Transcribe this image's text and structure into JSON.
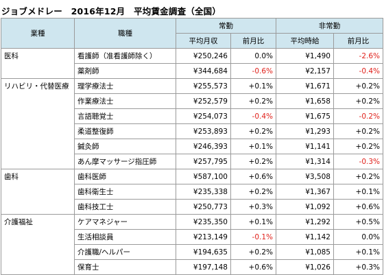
{
  "title": "ジョブメドレー　2016年12月　平均賃金調査（全国）",
  "headers": {
    "category": "業種",
    "job": "職種",
    "fulltime": "常勤",
    "parttime": "非常勤",
    "ft_avg": "平均月収",
    "ft_change": "前月比",
    "pt_avg": "平均時給",
    "pt_change": "前月比"
  },
  "groups": [
    {
      "category": "医科",
      "rows": [
        {
          "job": "看護師（准看護師除く）",
          "ft_avg": "¥250,246",
          "ft_change": "0.0%",
          "pt_avg": "¥1,490",
          "pt_change": "-2.6%"
        },
        {
          "job": "薬剤師",
          "ft_avg": "¥344,684",
          "ft_change": "-0.6%",
          "pt_avg": "¥2,157",
          "pt_change": "-0.4%"
        }
      ]
    },
    {
      "category": "リハビリ・代替医療",
      "rows": [
        {
          "job": "理学療法士",
          "ft_avg": "¥255,573",
          "ft_change": "+0.1%",
          "pt_avg": "¥1,671",
          "pt_change": "+0.2%"
        },
        {
          "job": "作業療法士",
          "ft_avg": "¥252,579",
          "ft_change": "+0.2%",
          "pt_avg": "¥1,658",
          "pt_change": "+0.2%"
        },
        {
          "job": "言語聴覚士",
          "ft_avg": "¥254,073",
          "ft_change": "-0.4%",
          "pt_avg": "¥1,675",
          "pt_change": "-0.2%"
        },
        {
          "job": "柔道整復師",
          "ft_avg": "¥253,893",
          "ft_change": "+0.2%",
          "pt_avg": "¥1,293",
          "pt_change": "+0.2%"
        },
        {
          "job": "鍼灸師",
          "ft_avg": "¥246,393",
          "ft_change": "+0.1%",
          "pt_avg": "¥1,141",
          "pt_change": "+0.2%"
        },
        {
          "job": "あん摩マッサージ指圧師",
          "ft_avg": "¥257,795",
          "ft_change": "+0.2%",
          "pt_avg": "¥1,314",
          "pt_change": "-0.3%"
        }
      ]
    },
    {
      "category": "歯科",
      "rows": [
        {
          "job": "歯科医師",
          "ft_avg": "¥587,100",
          "ft_change": "+0.6%",
          "pt_avg": "¥3,508",
          "pt_change": "+0.2%"
        },
        {
          "job": "歯科衛生士",
          "ft_avg": "¥235,338",
          "ft_change": "+0.2%",
          "pt_avg": "¥1,367",
          "pt_change": "+0.1%"
        },
        {
          "job": "歯科技工士",
          "ft_avg": "¥250,773",
          "ft_change": "+0.3%",
          "pt_avg": "¥1,092",
          "pt_change": "+0.6%"
        }
      ]
    },
    {
      "category": "介護福祉",
      "rows": [
        {
          "job": "ケアマネジャー",
          "ft_avg": "¥235,350",
          "ft_change": "+0.1%",
          "pt_avg": "¥1,292",
          "pt_change": "+0.5%"
        },
        {
          "job": "生活相談員",
          "ft_avg": "¥213,149",
          "ft_change": "-0.1%",
          "pt_avg": "¥1,142",
          "pt_change": "0.0%"
        },
        {
          "job": "介護職/ヘルパー",
          "ft_avg": "¥194,635",
          "ft_change": "+0.2%",
          "pt_avg": "¥1,085",
          "pt_change": "+0.1%"
        },
        {
          "job": "保育士",
          "ft_avg": "¥197,148",
          "ft_change": "+0.6%",
          "pt_avg": "¥1,026",
          "pt_change": "+0.3%"
        }
      ]
    }
  ]
}
